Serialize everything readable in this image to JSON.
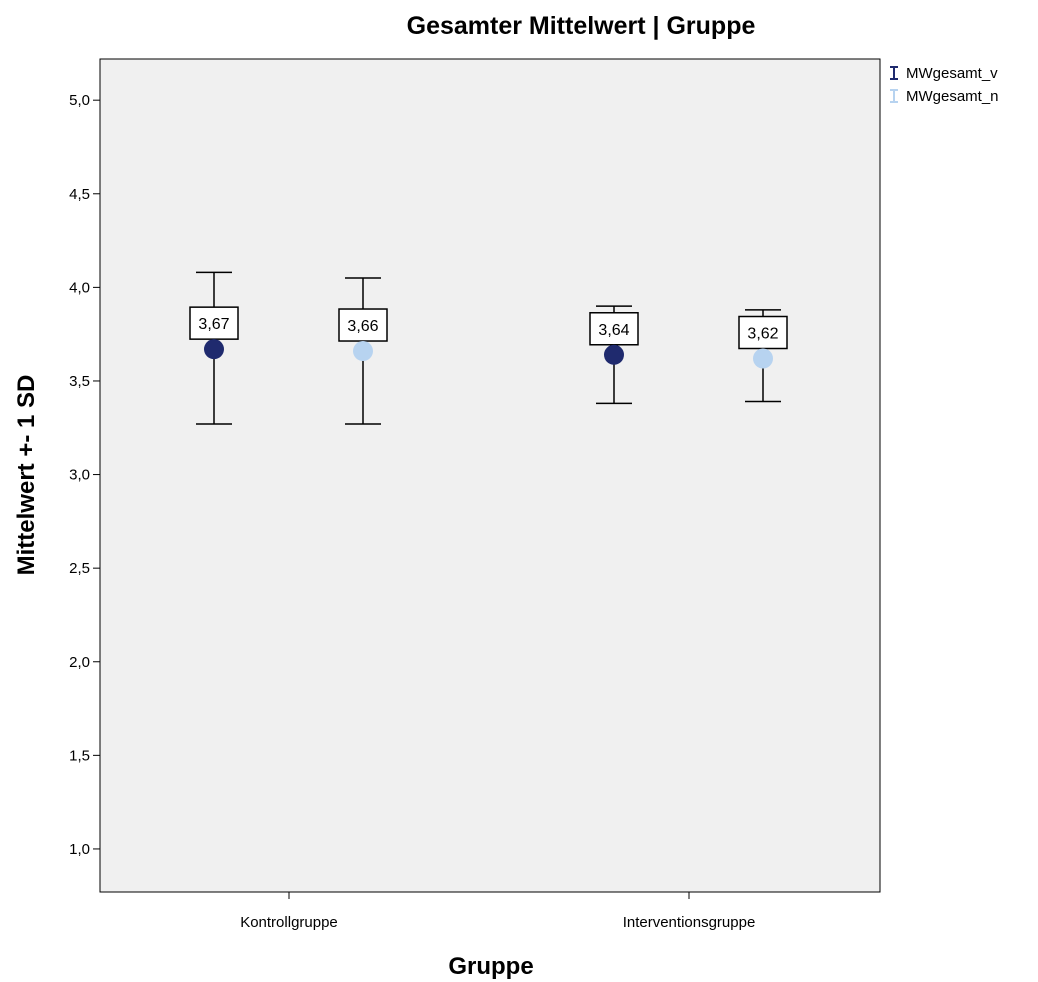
{
  "chart_data": {
    "type": "errorbar",
    "title": "Gesamter Mittelwert | Gruppe",
    "xlabel": "Gruppe",
    "ylabel": "Mittelwert +- 1 SD",
    "categories": [
      "Kontrollgruppe",
      "Interventionsgruppe"
    ],
    "ylim": [
      0.77,
      5.22
    ],
    "yticks": [
      "1,0",
      "1,5",
      "2,0",
      "2,5",
      "3,0",
      "3,5",
      "4,0",
      "4,5",
      "5,0"
    ],
    "ytick_values": [
      1.0,
      1.5,
      2.0,
      2.5,
      3.0,
      3.5,
      4.0,
      4.5,
      5.0
    ],
    "grid": false,
    "legend_position": "top-right",
    "background_color": "#f0f0f0",
    "series": [
      {
        "name": "MWgesamt_v",
        "color": "#1f2a6e",
        "mean": [
          3.67,
          3.64
        ],
        "mean_labels": [
          "3,67",
          "3,64"
        ],
        "upper": [
          4.08,
          3.9
        ],
        "lower": [
          3.27,
          3.38
        ]
      },
      {
        "name": "MWgesamt_n",
        "color": "#b7d3f0",
        "mean": [
          3.66,
          3.62
        ],
        "mean_labels": [
          "3,66",
          "3,62"
        ],
        "upper": [
          4.05,
          3.88
        ],
        "lower": [
          3.27,
          3.39
        ]
      }
    ]
  }
}
